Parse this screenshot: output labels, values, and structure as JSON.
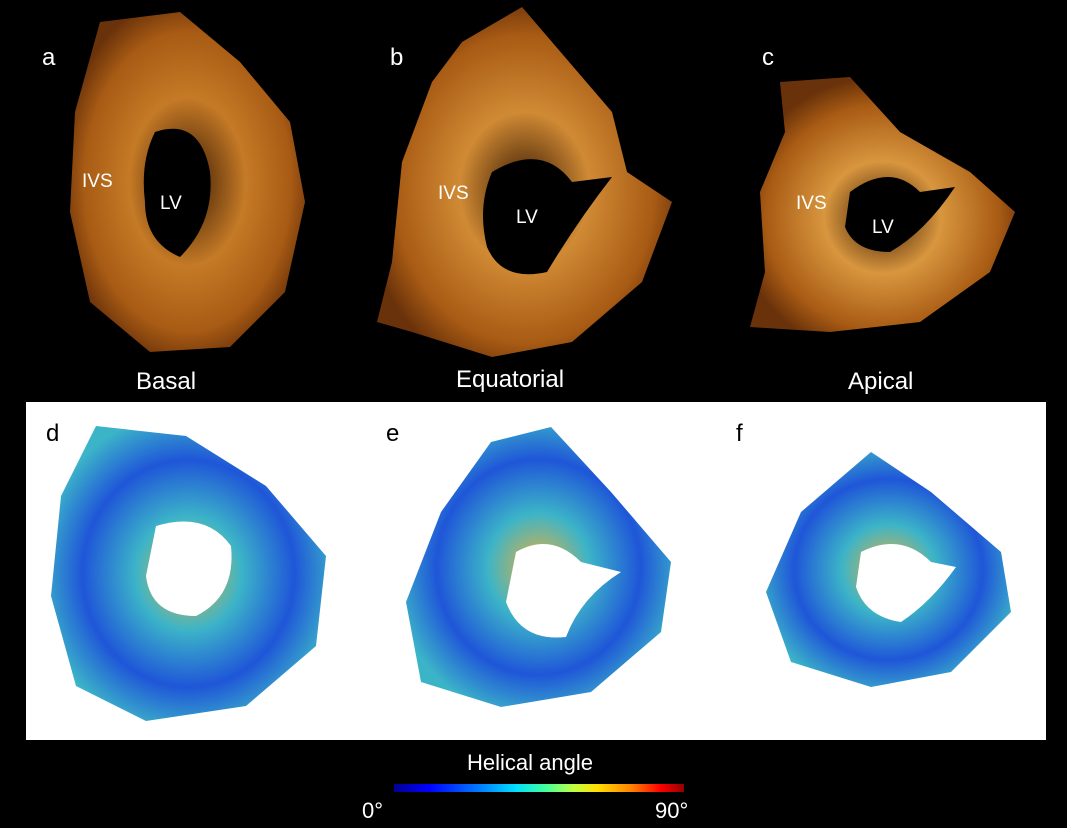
{
  "panels_top": [
    {
      "letter": "a",
      "slice": "Basal",
      "ivs": "IVS",
      "lv": "LV"
    },
    {
      "letter": "b",
      "slice": "Equatorial",
      "ivs": "IVS",
      "lv": "LV"
    },
    {
      "letter": "c",
      "slice": "Apical",
      "ivs": "IVS",
      "lv": "LV"
    }
  ],
  "panels_bottom": [
    {
      "letter": "d"
    },
    {
      "letter": "e"
    },
    {
      "letter": "f"
    }
  ],
  "legend": {
    "title": "Helical angle",
    "min": "0°",
    "max": "90°"
  },
  "colors": {
    "tissue_dark": "#5a2a06",
    "tissue_mid": "#9a5412",
    "tissue_light": "#e5a94a",
    "fiber_blue": "#1f56d8",
    "fiber_cyan": "#3cb4c8",
    "fiber_yellow": "#e8b13a"
  }
}
